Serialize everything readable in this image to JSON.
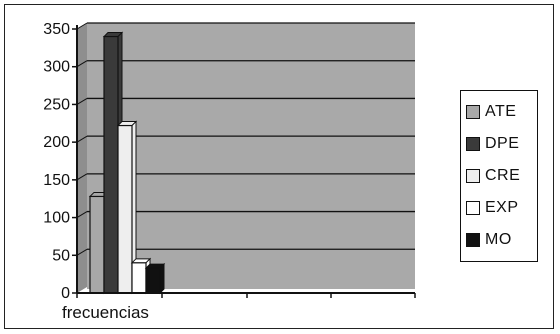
{
  "chart_data": {
    "type": "bar",
    "categories": [
      "frecuencias"
    ],
    "series": [
      {
        "name": "ATE",
        "values": [
          128
        ],
        "color": "#a8a8a8"
      },
      {
        "name": "DPE",
        "values": [
          340
        ],
        "color": "#3a3a3a"
      },
      {
        "name": "CRE",
        "values": [
          222
        ],
        "color": "#eeeeee"
      },
      {
        "name": "EXP",
        "values": [
          40
        ],
        "color": "#ffffff"
      },
      {
        "name": "MO",
        "values": [
          33
        ],
        "color": "#111111"
      }
    ],
    "ylim": [
      0,
      350
    ],
    "yticks": [
      "0",
      "50",
      "100",
      "150",
      "200",
      "250",
      "300",
      "350"
    ],
    "grid": true,
    "legend_position": "right",
    "plot_background": "#a9a9a9"
  }
}
